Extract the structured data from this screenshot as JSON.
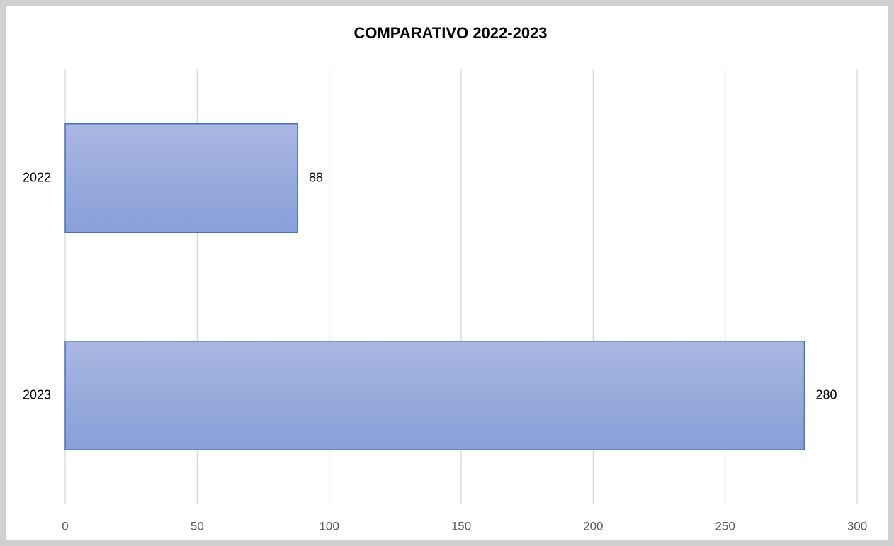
{
  "chart_data": {
    "type": "barh",
    "title": "COMPARATIVO 2022-2023",
    "categories": [
      "2022",
      "2023"
    ],
    "values": [
      88,
      280
    ],
    "color": "#4472c4",
    "xlim": [
      0,
      300
    ],
    "xticks": [
      0,
      50,
      100,
      150,
      200,
      250,
      300
    ],
    "grid": true
  }
}
